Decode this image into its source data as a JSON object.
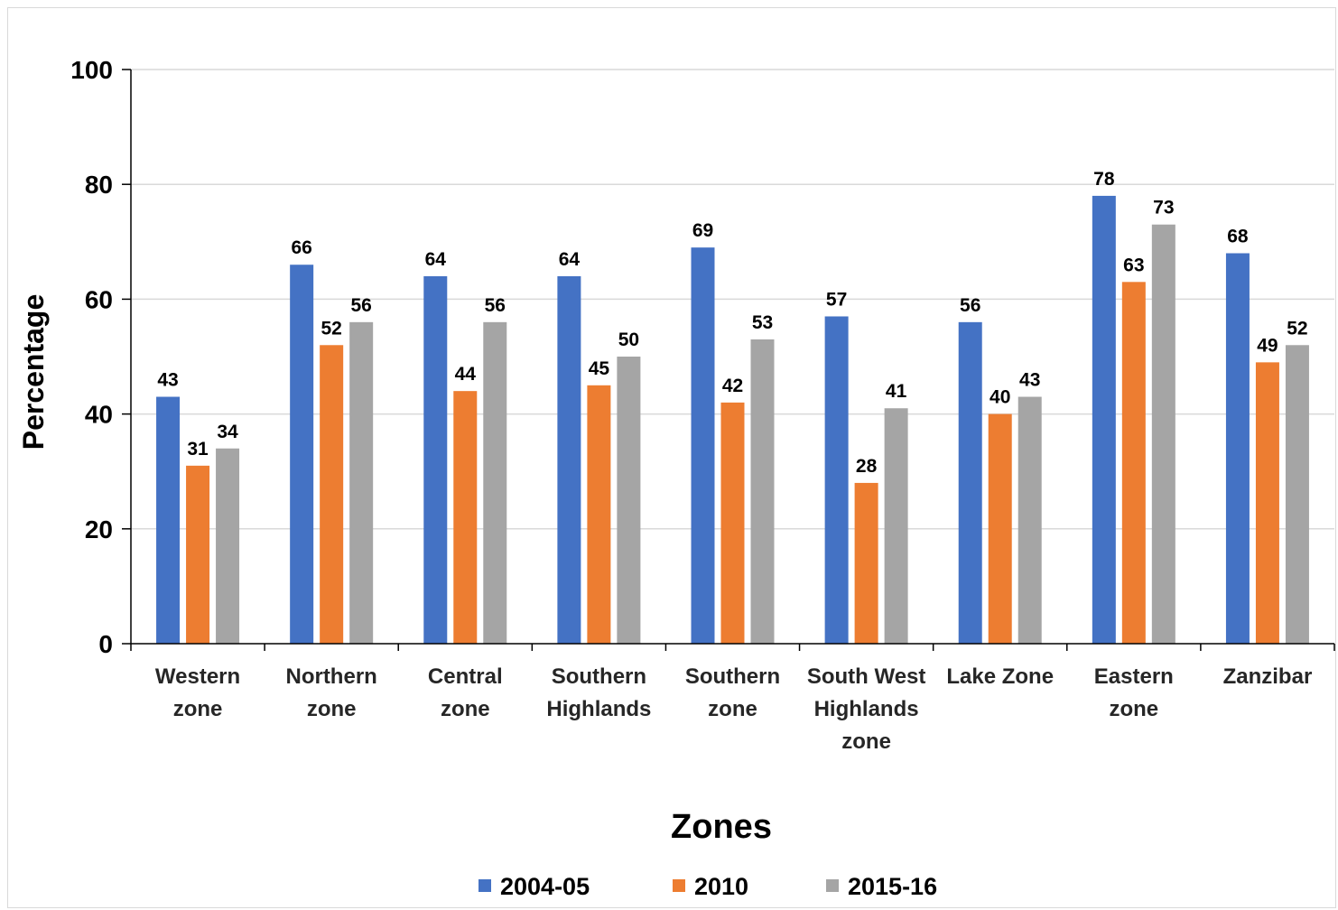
{
  "chart_data": {
    "type": "bar",
    "title": "",
    "xlabel": "Zones",
    "ylabel": "Percentage",
    "ylim": [
      0,
      100
    ],
    "yticks": [
      "0",
      "20",
      "40",
      "60",
      "80",
      "100"
    ],
    "grid": true,
    "legend_position": "bottom",
    "categories": [
      [
        "Western",
        "zone"
      ],
      [
        "Northern",
        "zone"
      ],
      [
        "Central",
        "zone"
      ],
      [
        "Southern",
        "Highlands"
      ],
      [
        "Southern",
        "zone"
      ],
      [
        "South West",
        "Highlands",
        "zone"
      ],
      [
        "Lake Zone"
      ],
      [
        "Eastern",
        "zone"
      ],
      [
        "Zanzibar"
      ]
    ],
    "series": [
      {
        "name": "2004-05",
        "color": "#4472c4",
        "values": [
          43,
          66,
          64,
          64,
          69,
          57,
          56,
          78,
          68
        ]
      },
      {
        "name": "2010",
        "color": "#ed7d31",
        "values": [
          31,
          52,
          44,
          45,
          42,
          28,
          40,
          63,
          49
        ]
      },
      {
        "name": "2015-16",
        "color": "#a5a5a5",
        "values": [
          34,
          56,
          56,
          50,
          53,
          41,
          43,
          73,
          52
        ]
      }
    ]
  }
}
